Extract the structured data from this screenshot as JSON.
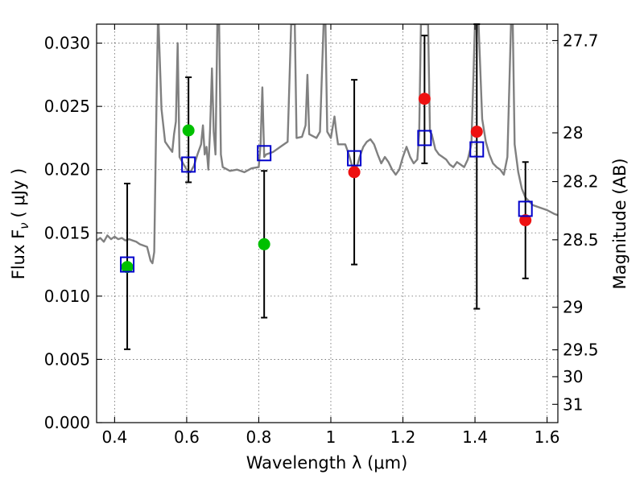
{
  "chart_data": {
    "type": "scatter",
    "xlabel": "Wavelength  λ (μm)",
    "ylabel": "Flux  F",
    "ylabel_sub": "ν",
    "ylabel_unit": "( μJy )",
    "y2label": "Magnitude (AB)",
    "xlim": [
      0.35,
      1.63
    ],
    "ylim": [
      0.0,
      0.0315
    ],
    "grid": true,
    "x_ticks": [
      0.4,
      0.6,
      0.8,
      1.0,
      1.2,
      1.4,
      1.6
    ],
    "x_tick_labels": [
      "0.4",
      "0.6",
      "0.8",
      "1",
      "1.2",
      "1.4",
      "1.6"
    ],
    "y_ticks": [
      0.0,
      0.005,
      0.01,
      0.015,
      0.02,
      0.025,
      0.03
    ],
    "y_tick_labels": [
      "0.000",
      "0.005",
      "0.010",
      "0.015",
      "0.020",
      "0.025",
      "0.030"
    ],
    "mag_ticks": [
      {
        "label": "27.7",
        "mag": 27.7
      },
      {
        "label": "28",
        "mag": 28.0
      },
      {
        "label": "28.2",
        "mag": 28.2
      },
      {
        "label": "28.5",
        "mag": 28.5
      },
      {
        "label": "29",
        "mag": 29.0
      },
      {
        "label": "29.5",
        "mag": 29.5
      },
      {
        "label": "30",
        "mag": 30.0
      },
      {
        "label": "31",
        "mag": 31.0
      }
    ],
    "model_spectrum": {
      "color": "#808080",
      "points": [
        [
          0.35,
          0.0144
        ],
        [
          0.36,
          0.0146
        ],
        [
          0.37,
          0.0143
        ],
        [
          0.38,
          0.0148
        ],
        [
          0.39,
          0.0145
        ],
        [
          0.4,
          0.0147
        ],
        [
          0.41,
          0.0145
        ],
        [
          0.42,
          0.0146
        ],
        [
          0.43,
          0.0144
        ],
        [
          0.44,
          0.0145
        ],
        [
          0.45,
          0.0144
        ],
        [
          0.46,
          0.0143
        ],
        [
          0.47,
          0.0141
        ],
        [
          0.48,
          0.014
        ],
        [
          0.49,
          0.0139
        ],
        [
          0.5,
          0.0128
        ],
        [
          0.505,
          0.0126
        ],
        [
          0.51,
          0.0135
        ],
        [
          0.515,
          0.0232
        ],
        [
          0.52,
          0.0315
        ],
        [
          0.522,
          0.0315
        ],
        [
          0.53,
          0.0248
        ],
        [
          0.54,
          0.0222
        ],
        [
          0.55,
          0.0218
        ],
        [
          0.56,
          0.0214
        ],
        [
          0.565,
          0.0228
        ],
        [
          0.57,
          0.0238
        ],
        [
          0.575,
          0.03
        ],
        [
          0.58,
          0.021
        ],
        [
          0.59,
          0.0205
        ],
        [
          0.6,
          0.02
        ],
        [
          0.61,
          0.0198
        ],
        [
          0.62,
          0.0203
        ],
        [
          0.63,
          0.0212
        ],
        [
          0.64,
          0.022
        ],
        [
          0.645,
          0.0235
        ],
        [
          0.65,
          0.0212
        ],
        [
          0.655,
          0.0218
        ],
        [
          0.66,
          0.02
        ],
        [
          0.665,
          0.0232
        ],
        [
          0.67,
          0.028
        ],
        [
          0.675,
          0.023
        ],
        [
          0.68,
          0.0212
        ],
        [
          0.685,
          0.0315
        ],
        [
          0.69,
          0.0315
        ],
        [
          0.695,
          0.0212
        ],
        [
          0.7,
          0.0202
        ],
        [
          0.72,
          0.0199
        ],
        [
          0.74,
          0.02
        ],
        [
          0.76,
          0.0198
        ],
        [
          0.78,
          0.0201
        ],
        [
          0.8,
          0.0202
        ],
        [
          0.805,
          0.022
        ],
        [
          0.81,
          0.0265
        ],
        [
          0.815,
          0.021
        ],
        [
          0.82,
          0.0212
        ],
        [
          0.84,
          0.0214
        ],
        [
          0.86,
          0.0218
        ],
        [
          0.88,
          0.0222
        ],
        [
          0.89,
          0.0315
        ],
        [
          0.9,
          0.0315
        ],
        [
          0.905,
          0.0225
        ],
        [
          0.92,
          0.0226
        ],
        [
          0.93,
          0.0235
        ],
        [
          0.935,
          0.0275
        ],
        [
          0.94,
          0.0228
        ],
        [
          0.96,
          0.0225
        ],
        [
          0.97,
          0.023
        ],
        [
          0.98,
          0.0315
        ],
        [
          0.985,
          0.0315
        ],
        [
          0.99,
          0.023
        ],
        [
          1.0,
          0.0225
        ],
        [
          1.01,
          0.0242
        ],
        [
          1.015,
          0.023
        ],
        [
          1.02,
          0.022
        ],
        [
          1.04,
          0.022
        ],
        [
          1.05,
          0.0212
        ],
        [
          1.06,
          0.0202
        ],
        [
          1.07,
          0.02
        ],
        [
          1.08,
          0.021
        ],
        [
          1.09,
          0.0218
        ],
        [
          1.1,
          0.0222
        ],
        [
          1.11,
          0.0224
        ],
        [
          1.12,
          0.022
        ],
        [
          1.13,
          0.0212
        ],
        [
          1.14,
          0.0205
        ],
        [
          1.15,
          0.021
        ],
        [
          1.16,
          0.0206
        ],
        [
          1.17,
          0.02
        ],
        [
          1.18,
          0.0196
        ],
        [
          1.19,
          0.02
        ],
        [
          1.2,
          0.021
        ],
        [
          1.21,
          0.0218
        ],
        [
          1.22,
          0.021
        ],
        [
          1.23,
          0.0205
        ],
        [
          1.24,
          0.0208
        ],
        [
          1.245,
          0.0228
        ],
        [
          1.25,
          0.0315
        ],
        [
          1.26,
          0.0315
        ],
        [
          1.27,
          0.0315
        ],
        [
          1.275,
          0.023
        ],
        [
          1.28,
          0.0228
        ],
        [
          1.29,
          0.0216
        ],
        [
          1.3,
          0.0212
        ],
        [
          1.31,
          0.021
        ],
        [
          1.32,
          0.0208
        ],
        [
          1.33,
          0.0204
        ],
        [
          1.34,
          0.0202
        ],
        [
          1.35,
          0.0206
        ],
        [
          1.36,
          0.0204
        ],
        [
          1.37,
          0.0202
        ],
        [
          1.38,
          0.0208
        ],
        [
          1.39,
          0.022
        ],
        [
          1.4,
          0.0315
        ],
        [
          1.41,
          0.0315
        ],
        [
          1.42,
          0.024
        ],
        [
          1.43,
          0.0222
        ],
        [
          1.44,
          0.0212
        ],
        [
          1.45,
          0.0205
        ],
        [
          1.46,
          0.0202
        ],
        [
          1.47,
          0.02
        ],
        [
          1.48,
          0.0196
        ],
        [
          1.49,
          0.021
        ],
        [
          1.5,
          0.0315
        ],
        [
          1.505,
          0.0315
        ],
        [
          1.51,
          0.022
        ],
        [
          1.52,
          0.0198
        ],
        [
          1.53,
          0.0185
        ],
        [
          1.54,
          0.0178
        ],
        [
          1.55,
          0.0175
        ],
        [
          1.56,
          0.0172
        ],
        [
          1.58,
          0.017
        ],
        [
          1.6,
          0.0168
        ],
        [
          1.62,
          0.0165
        ],
        [
          1.63,
          0.0164
        ]
      ]
    },
    "model_photometry": {
      "marker": "open-square",
      "color": "#0000cc",
      "points": [
        [
          0.435,
          0.0125
        ],
        [
          0.605,
          0.0204
        ],
        [
          0.815,
          0.0213
        ],
        [
          1.065,
          0.0209
        ],
        [
          1.26,
          0.0225
        ],
        [
          1.405,
          0.0216
        ],
        [
          1.54,
          0.0169
        ]
      ]
    },
    "observed_detections": {
      "marker": "filled-circle",
      "color": "#00c000",
      "points": [
        [
          0.435,
          0.0123
        ],
        [
          0.605,
          0.0231
        ],
        [
          0.815,
          0.0141
        ]
      ]
    },
    "observed_upper": {
      "marker": "filled-circle",
      "color": "#ee1111",
      "points": [
        [
          1.065,
          0.0198
        ],
        [
          1.26,
          0.0256
        ],
        [
          1.405,
          0.023
        ],
        [
          1.54,
          0.016
        ]
      ]
    },
    "error_bars": [
      {
        "x": 0.435,
        "low": 0.0058,
        "high": 0.0189
      },
      {
        "x": 0.605,
        "low": 0.019,
        "high": 0.0273
      },
      {
        "x": 0.815,
        "low": 0.0083,
        "high": 0.0199
      },
      {
        "x": 1.065,
        "low": 0.0125,
        "high": 0.0271
      },
      {
        "x": 1.26,
        "low": 0.0205,
        "high": 0.0306
      },
      {
        "x": 1.405,
        "low": 0.009,
        "high": 0.0315
      },
      {
        "x": 1.54,
        "low": 0.0114,
        "high": 0.0206
      }
    ]
  }
}
